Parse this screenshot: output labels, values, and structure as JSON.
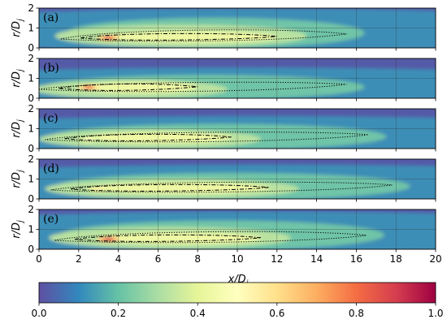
{
  "chart_data": {
    "type": "heatmap",
    "panels": [
      {
        "label": "(a)",
        "core_start": 1.3,
        "peak_x": 3.5,
        "peak_r": 0.5,
        "peak_level": 0.85,
        "outer_contour_end": 15.5,
        "inner_contour_end": 12.0,
        "spread": 1.0
      },
      {
        "label": "(b)",
        "core_start": 0.2,
        "peak_x": 2.5,
        "peak_r": 0.55,
        "peak_level": 0.8,
        "outer_contour_end": 15.5,
        "inner_contour_end": 8.0,
        "spread": 0.75
      },
      {
        "label": "(c)",
        "core_start": 0.5,
        "peak_x": 2.5,
        "peak_r": 0.45,
        "peak_level": 0.5,
        "outer_contour_end": 16.6,
        "inner_contour_end": 9.7,
        "spread": 0.8
      },
      {
        "label": "(d)",
        "core_start": 0.8,
        "peak_x": 3.0,
        "peak_r": 0.5,
        "peak_level": 0.55,
        "outer_contour_end": 17.8,
        "inner_contour_end": 11.6,
        "spread": 0.85
      },
      {
        "label": "(e)",
        "core_start": 1.0,
        "peak_x": 3.5,
        "peak_r": 0.5,
        "peak_level": 0.9,
        "outer_contour_end": 16.5,
        "inner_contour_end": 11.2,
        "spread": 0.95
      }
    ],
    "x_ticks": [
      "0",
      "2",
      "4",
      "6",
      "8",
      "10",
      "12",
      "14",
      "16",
      "18",
      "20"
    ],
    "y_ticks": [
      "0",
      "1",
      "2"
    ],
    "xlim": [
      0,
      20
    ],
    "ylim": [
      0,
      2
    ],
    "xlabel": "x/D",
    "xlabel_sub": "j",
    "ylabel": "r/D",
    "ylabel_sub": "j",
    "grid": true,
    "colorbar": {
      "colormap": "Spectral_r",
      "ticks": [
        "0.0",
        "0.2",
        "0.4",
        "0.6",
        "0.8",
        "1.0"
      ],
      "range": [
        0,
        1
      ]
    },
    "colors": {
      "stops": [
        "#5e4fa2",
        "#3288bd",
        "#66c2a5",
        "#abdda4",
        "#e6f598",
        "#ffffbf",
        "#fee08b",
        "#fdae61",
        "#f46d43",
        "#d53e4f",
        "#9e0142"
      ]
    }
  }
}
